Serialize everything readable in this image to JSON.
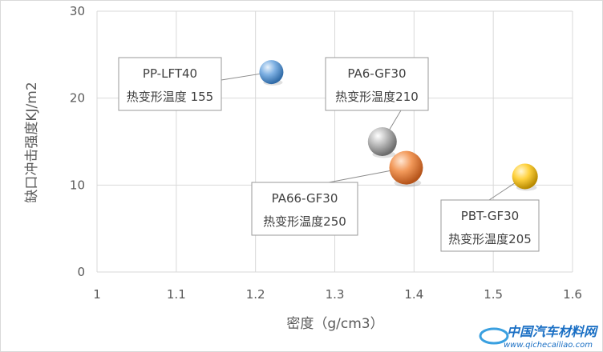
{
  "chart_data": {
    "type": "scatter",
    "xlabel": "密度（g/cm3）",
    "ylabel": "缺口冲击强度KJ/m2",
    "xlim": [
      1,
      1.6
    ],
    "ylim": [
      0,
      30
    ],
    "x_ticks": [
      "1",
      "1.1",
      "1.2",
      "1.3",
      "1.4",
      "1.5",
      "1.6"
    ],
    "y_ticks": [
      "0",
      "10",
      "20",
      "30"
    ],
    "grid": true,
    "points": [
      {
        "x": 1.22,
        "y": 23,
        "name": "PP-LFT40",
        "detail": "热变形温度 155",
        "color": "#5b9bd5"
      },
      {
        "x": 1.36,
        "y": 15,
        "name": "PA6-GF30",
        "detail": "热变形温度210",
        "color": "#a5a5a5"
      },
      {
        "x": 1.39,
        "y": 12,
        "name": "PA66-GF30",
        "detail": "热变形温度250",
        "color": "#ed7d31"
      },
      {
        "x": 1.54,
        "y": 11,
        "name": "PBT-GF30",
        "detail": "热变形温度205",
        "color": "#ffc000"
      }
    ]
  },
  "watermark": {
    "text": "中国汽车材料网",
    "url": "www.qichecailiao.com"
  }
}
